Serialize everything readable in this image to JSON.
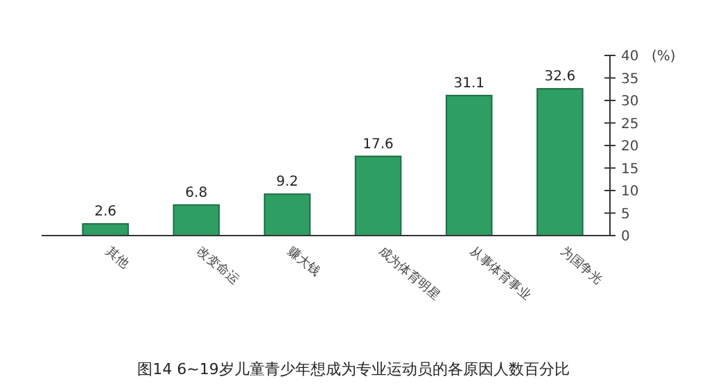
{
  "chart_data": {
    "type": "bar",
    "title": "图14 6~19岁儿童青少年想成为专业运动员的各原因人数百分比",
    "ylabel": "(%)",
    "categories": [
      "其他",
      "改变命运",
      "赚大钱",
      "成为体育明星",
      "从事体育事业",
      "为国争光"
    ],
    "values": [
      2.6,
      6.8,
      9.2,
      17.6,
      31.1,
      32.6
    ],
    "color": "#2e9e62",
    "data_labels": true,
    "ylim": [
      0,
      40
    ],
    "yticks": [
      0,
      5,
      10,
      15,
      20,
      25,
      30,
      35,
      40
    ],
    "grid": false
  }
}
